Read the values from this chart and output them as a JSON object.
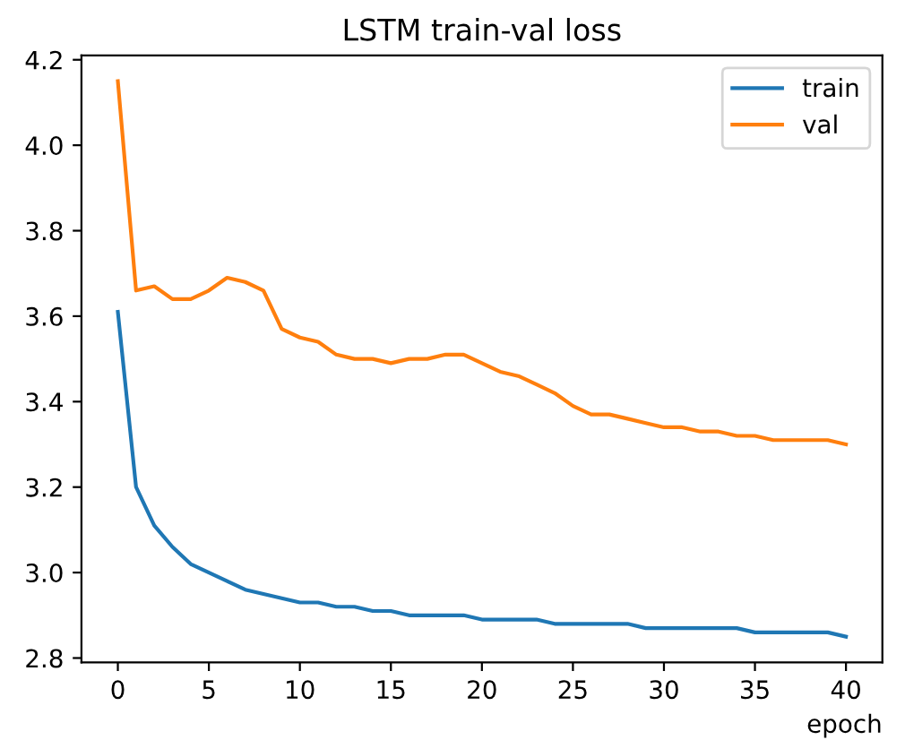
{
  "chart_data": {
    "type": "line",
    "title": "LSTM train-val loss",
    "xlabel": "epoch",
    "x": [
      0,
      1,
      2,
      3,
      4,
      5,
      6,
      7,
      8,
      9,
      10,
      11,
      12,
      13,
      14,
      15,
      16,
      17,
      18,
      19,
      20,
      21,
      22,
      23,
      24,
      25,
      26,
      27,
      28,
      29,
      30,
      31,
      32,
      33,
      34,
      35,
      36,
      37,
      38,
      39,
      40
    ],
    "series": [
      {
        "name": "train",
        "color": "#1f77b4",
        "values": [
          3.61,
          3.2,
          3.11,
          3.06,
          3.02,
          3.0,
          2.98,
          2.96,
          2.95,
          2.94,
          2.93,
          2.93,
          2.92,
          2.92,
          2.91,
          2.91,
          2.9,
          2.9,
          2.9,
          2.9,
          2.89,
          2.89,
          2.89,
          2.89,
          2.88,
          2.88,
          2.88,
          2.88,
          2.88,
          2.87,
          2.87,
          2.87,
          2.87,
          2.87,
          2.87,
          2.86,
          2.86,
          2.86,
          2.86,
          2.86,
          2.85
        ]
      },
      {
        "name": "val",
        "color": "#ff7f0e",
        "values": [
          4.15,
          3.66,
          3.67,
          3.64,
          3.64,
          3.66,
          3.69,
          3.68,
          3.66,
          3.57,
          3.55,
          3.54,
          3.51,
          3.5,
          3.5,
          3.49,
          3.5,
          3.5,
          3.51,
          3.51,
          3.49,
          3.47,
          3.46,
          3.44,
          3.42,
          3.39,
          3.37,
          3.37,
          3.36,
          3.35,
          3.34,
          3.34,
          3.33,
          3.33,
          3.32,
          3.32,
          3.31,
          3.31,
          3.31,
          3.31,
          3.3
        ]
      }
    ],
    "xlim": [
      -2,
      42
    ],
    "ylim": [
      2.79,
      4.21
    ],
    "xticks": [
      0,
      5,
      10,
      15,
      20,
      25,
      30,
      35,
      40
    ],
    "yticks": [
      {
        "value": 2.8,
        "label": "2.8"
      },
      {
        "value": 3.0,
        "label": "3.0"
      },
      {
        "value": 3.2,
        "label": "3.2"
      },
      {
        "value": 3.4,
        "label": "3.4"
      },
      {
        "value": 3.6,
        "label": "3.6"
      },
      {
        "value": 3.8,
        "label": "3.8"
      },
      {
        "value": 4.0,
        "label": "4.0"
      },
      {
        "value": 4.2,
        "label": "4.2"
      }
    ],
    "legend": "top right",
    "grid": false,
    "marker": "none",
    "line_style": "solid"
  }
}
